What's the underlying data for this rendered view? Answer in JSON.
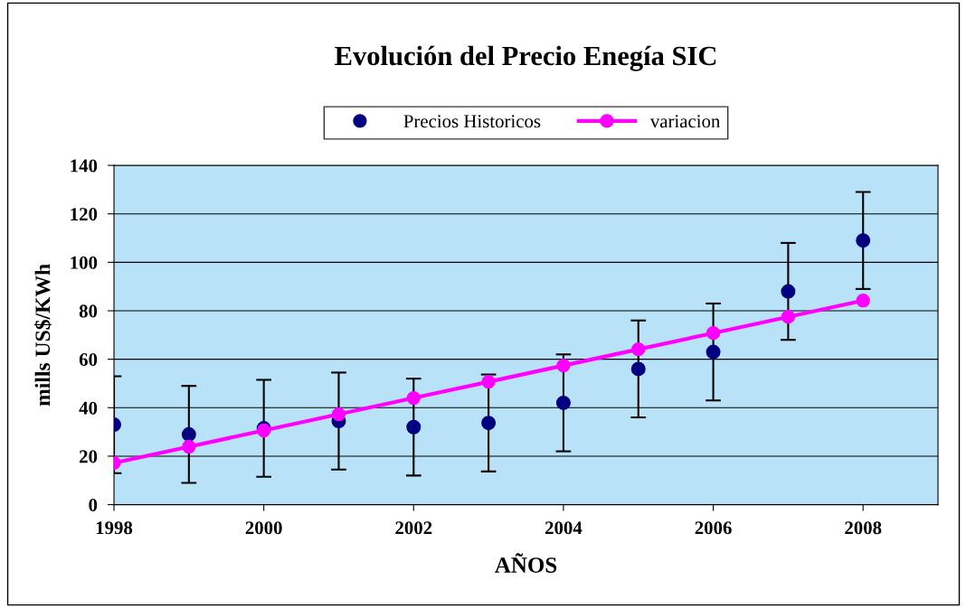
{
  "chart_data": {
    "type": "scatter",
    "title": "Evolución del Precio Enegía SIC",
    "xlabel": "AÑOS",
    "ylabel": "mills US$/KWh",
    "x": [
      1998,
      1999,
      2000,
      2001,
      2002,
      2003,
      2004,
      2005,
      2006,
      2007,
      2008
    ],
    "series": [
      {
        "name": "Precios Historicos",
        "color": "#000080",
        "marker": "circle",
        "values": [
          33,
          29,
          31.5,
          34.5,
          32,
          33.7,
          42,
          56,
          63,
          88,
          109
        ],
        "errors": [
          20,
          20,
          20,
          20,
          20,
          20,
          20,
          20,
          20,
          20,
          20
        ]
      },
      {
        "name": "variacion",
        "type": "line",
        "color": "#ff00ff",
        "marker": "circle",
        "line_style": "solid",
        "values": [
          17.2,
          23.9,
          30.6,
          37.3,
          44,
          50.7,
          57.4,
          64.1,
          70.8,
          77.5,
          84.2
        ]
      }
    ],
    "xlim": [
      1998,
      2009
    ],
    "xticks": [
      1998,
      2000,
      2002,
      2004,
      2006,
      2008
    ],
    "ylim": [
      0,
      140
    ],
    "yticks": [
      0,
      20,
      40,
      60,
      80,
      100,
      120,
      140
    ],
    "grid": "y",
    "legend": "top"
  }
}
